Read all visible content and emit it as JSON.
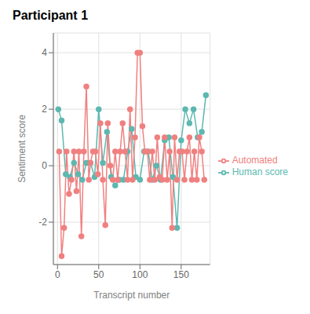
{
  "chart_data": {
    "type": "line",
    "title": "Participant 1",
    "xlabel": "Transcript number",
    "ylabel": "Sentiment score",
    "series": [
      {
        "name": "Human score",
        "color": "#5cb8b0",
        "marker": "circle",
        "x": [
          1,
          5,
          10,
          15,
          20,
          25,
          30,
          35,
          40,
          45,
          50,
          55,
          60,
          65,
          70,
          75,
          80,
          85,
          90,
          95,
          100,
          105,
          110,
          115,
          120,
          125,
          130,
          135,
          140,
          145,
          150,
          155,
          160,
          165,
          170,
          175,
          180
        ],
        "values": [
          2.0,
          1.6,
          -0.3,
          -0.4,
          0.1,
          -0.3,
          -0.5,
          0.1,
          0.1,
          -0.4,
          2.0,
          0.1,
          1.2,
          -0.4,
          -0.7,
          -0.5,
          -0.5,
          0.5,
          1.3,
          -0.4,
          -0.5,
          0.5,
          0.5,
          -0.5,
          0.0,
          -0.5,
          0.9,
          1.0,
          -0.4,
          -2.2,
          0.9,
          2.0,
          1.5,
          2.0,
          1.0,
          1.2,
          2.5
        ]
      },
      {
        "name": "Automated",
        "color": "#f08080",
        "marker": "circle",
        "x": [
          2,
          5,
          8,
          11,
          14,
          17,
          20,
          23,
          26,
          29,
          32,
          35,
          38,
          40,
          43,
          46,
          49,
          52,
          55,
          58,
          61,
          64,
          67,
          70,
          73,
          76,
          79,
          82,
          85,
          88,
          91,
          94,
          97,
          100,
          103,
          106,
          109,
          112,
          115,
          118,
          121,
          124,
          127,
          130,
          133,
          136,
          139,
          142,
          145,
          148,
          151,
          154,
          157,
          160,
          163,
          166,
          169,
          172,
          175,
          178
        ],
        "values": [
          0.5,
          -3.2,
          -2.2,
          0.5,
          -1.0,
          -0.5,
          0.5,
          -0.9,
          0.5,
          -2.5,
          0.5,
          2.8,
          -0.5,
          0.1,
          0.5,
          0.5,
          -0.3,
          1.5,
          -0.5,
          -2.1,
          1.5,
          0.0,
          -0.5,
          0.5,
          -0.5,
          0.5,
          1.5,
          0.5,
          -0.5,
          2.0,
          -0.5,
          1.0,
          4.0,
          4.0,
          1.4,
          0.5,
          0.5,
          -0.5,
          0.5,
          -0.5,
          1.0,
          -0.4,
          -0.5,
          1.0,
          -0.5,
          0.5,
          -2.2,
          1.0,
          -0.5,
          0.5,
          0.5,
          -0.5,
          0.5,
          1.0,
          -0.5,
          0.5,
          -0.5,
          1.0,
          0.5,
          -0.5
        ]
      }
    ],
    "xlim": [
      -5,
      185
    ],
    "ylim": [
      -3.5,
      4.7
    ],
    "xticks": [
      0,
      50,
      100,
      150
    ],
    "yticks": [
      -2,
      0,
      2,
      4
    ],
    "grid": true,
    "legend": "right"
  }
}
